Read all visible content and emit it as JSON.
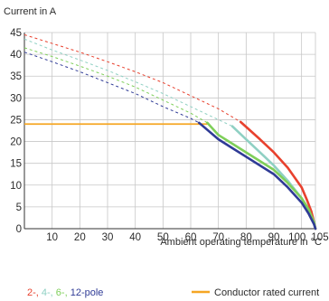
{
  "chart_data": {
    "type": "line",
    "title": "",
    "ylabel": "Current in A",
    "xlabel": "Ambient operating temperature in °C",
    "xlim": [
      0,
      105
    ],
    "ylim": [
      0,
      45
    ],
    "x_ticks": [
      10,
      20,
      30,
      40,
      50,
      60,
      70,
      80,
      90,
      100,
      105
    ],
    "y_ticks": [
      0,
      5,
      10,
      15,
      20,
      25,
      30,
      35,
      40,
      45
    ],
    "grid": true,
    "legend_position": "bottom",
    "pole_legend": {
      "parts": [
        {
          "text": "2-,",
          "color": "#e8412e"
        },
        {
          "text": "4-,",
          "color": "#8fd0c3"
        },
        {
          "text": "6-,",
          "color": "#7fcf5a"
        },
        {
          "text": "12-pole",
          "color": "#2f3b96"
        }
      ]
    },
    "series": [
      {
        "name": "2-pole",
        "color": "#e8412e",
        "derating_x": [
          0,
          10,
          20,
          30,
          40,
          50,
          60,
          70,
          78
        ],
        "derating_y": [
          44.5,
          42.5,
          40.5,
          38.3,
          36,
          33.5,
          30.5,
          27.5,
          24.5
        ],
        "curve_x": [
          78,
          85,
          90,
          95,
          100,
          102,
          103.5,
          104.5,
          105
        ],
        "curve_y": [
          24.5,
          20.5,
          17.5,
          14,
          9.5,
          6.5,
          4,
          1.5,
          0
        ]
      },
      {
        "name": "4-pole",
        "color": "#8fd0c3",
        "derating_x": [
          0,
          10,
          20,
          30,
          40,
          50,
          60,
          70,
          75
        ],
        "derating_y": [
          43.5,
          41,
          38.7,
          36.3,
          33.7,
          31,
          28,
          25,
          23.5
        ],
        "curve_x": [
          75,
          80,
          85,
          90,
          95,
          100,
          102,
          104,
          105
        ],
        "curve_y": [
          23.5,
          20.5,
          17.5,
          14.5,
          11,
          7,
          5,
          2,
          0
        ]
      },
      {
        "name": "6-pole",
        "color": "#7fcf5a",
        "derating_x": [
          0,
          10,
          20,
          30,
          40,
          50,
          60,
          66
        ],
        "derating_y": [
          41.5,
          39.5,
          37.3,
          35,
          32.5,
          29.5,
          26.5,
          24.3
        ],
        "curve_x": [
          66,
          70,
          80,
          90,
          95,
          100,
          102.5,
          104.5,
          105
        ],
        "curve_y": [
          24.3,
          21.5,
          17.5,
          13.5,
          10.5,
          7,
          4.5,
          1.5,
          0
        ]
      },
      {
        "name": "12-pole",
        "color": "#2f3b96",
        "derating_x": [
          0,
          10,
          20,
          30,
          40,
          50,
          60,
          63
        ],
        "derating_y": [
          40.5,
          38.3,
          36,
          33.5,
          31,
          28,
          25.3,
          24.3
        ],
        "curve_x": [
          63,
          70,
          80,
          90,
          95,
          100,
          102.5,
          104.5,
          105
        ],
        "curve_y": [
          24.3,
          20.5,
          16.5,
          12.5,
          9.5,
          6,
          3.5,
          1,
          0
        ]
      }
    ],
    "reference_line": {
      "name": "Conductor rated current",
      "color": "#f5a623",
      "y": 24,
      "x_end": 66
    }
  }
}
